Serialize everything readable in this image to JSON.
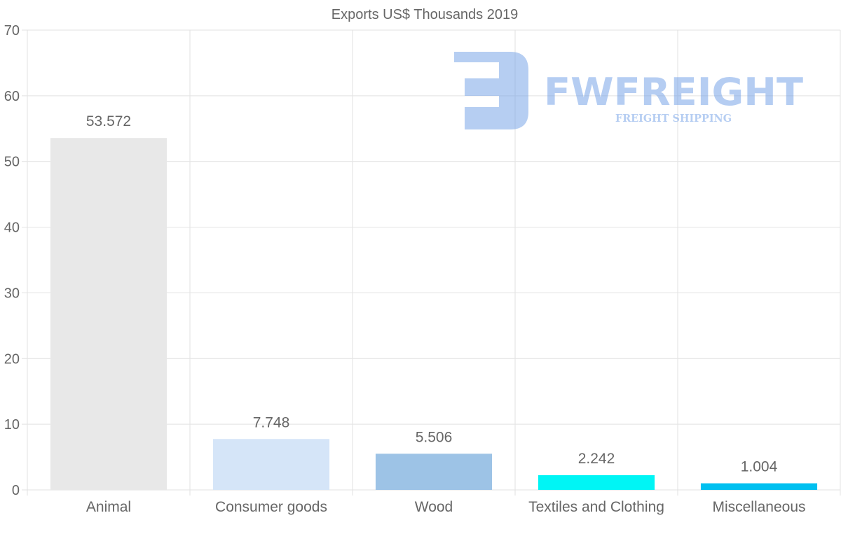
{
  "chart_data": {
    "type": "bar",
    "title": "Exports US$ Thousands 2019",
    "categories": [
      "Animal",
      "Consumer goods",
      "Wood",
      "Textiles and Clothing",
      "Miscellaneous"
    ],
    "values": [
      53.572,
      7.748,
      5.506,
      2.242,
      1.004
    ],
    "value_labels": [
      "53.572",
      "7.748",
      "5.506",
      "2.242",
      "1.004"
    ],
    "colors": [
      "#e8e8e8",
      "#d5e5f8",
      "#9dc3e6",
      "#00f5f5",
      "#00c0f0"
    ],
    "ylim": [
      0,
      70
    ],
    "yticks": [
      0,
      10,
      20,
      30,
      40,
      50,
      60,
      70
    ],
    "xlabel": "",
    "ylabel": "",
    "grid": true
  },
  "watermark": {
    "brand": "FWFREIGHT",
    "tagline": "FREIGHT SHIPPING",
    "color": "#6d9de6"
  }
}
